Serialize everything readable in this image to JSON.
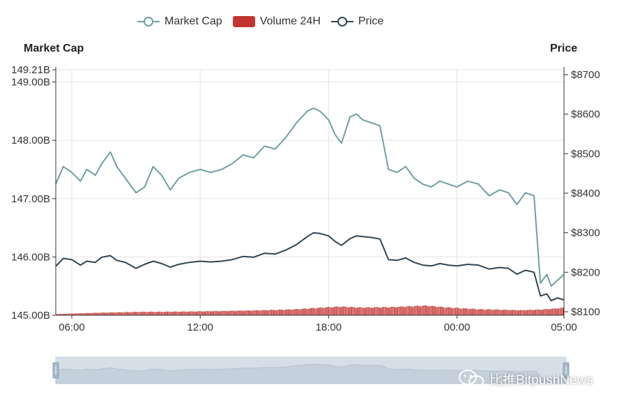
{
  "legend": {
    "market_cap": "Market Cap",
    "volume": "Volume 24H",
    "price": "Price"
  },
  "axis_titles": {
    "left": "Market Cap",
    "right": "Price"
  },
  "watermark": "比推BitpushNews",
  "colors": {
    "market_cap": "#6e9ea4",
    "volume": "#c23531",
    "price": "#2f4554",
    "grid": "#e4e4e4",
    "slider": "#d6dfe8"
  },
  "chart_data": {
    "type": "line",
    "x_ticks": [
      "06:00",
      "12:00",
      "18:00",
      "00:00",
      "05:00"
    ],
    "x_range_hours": [
      5.25,
      29.0
    ],
    "left_axis": {
      "label": "Market Cap",
      "ticks": [
        "149.21B",
        "149.00B",
        "148.00B",
        "147.00B",
        "146.00B",
        "145.00B"
      ],
      "ylim": [
        145.0,
        149.21
      ],
      "unit": "B"
    },
    "right_axis": {
      "label": "Price",
      "ticks": [
        "$8700",
        "$8600",
        "$8500",
        "$8400",
        "$8300",
        "$8200",
        "$8100"
      ],
      "ylim": [
        8100,
        8700
      ]
    },
    "series": [
      {
        "name": "Market Cap",
        "axis": "left",
        "x": [
          5.25,
          5.6,
          6.0,
          6.4,
          6.7,
          7.1,
          7.4,
          7.8,
          8.1,
          8.5,
          9.0,
          9.4,
          9.8,
          10.2,
          10.6,
          11.0,
          11.5,
          12.0,
          12.5,
          13.0,
          13.5,
          14.0,
          14.5,
          15.0,
          15.5,
          16.0,
          16.5,
          17.0,
          17.3,
          17.6,
          18.0,
          18.3,
          18.6,
          19.0,
          19.3,
          19.6,
          20.0,
          20.4,
          20.8,
          21.2,
          21.6,
          22.0,
          22.4,
          22.8,
          23.2,
          23.6,
          24.0,
          24.5,
          25.0,
          25.5,
          26.0,
          26.4,
          26.8,
          27.2,
          27.6,
          27.9,
          28.2,
          28.4,
          28.7,
          29.0
        ],
        "values": [
          147.25,
          147.55,
          147.45,
          147.3,
          147.5,
          147.4,
          147.6,
          147.8,
          147.55,
          147.35,
          147.1,
          147.2,
          147.55,
          147.4,
          147.15,
          147.35,
          147.45,
          147.5,
          147.45,
          147.5,
          147.6,
          147.75,
          147.7,
          147.9,
          147.85,
          148.05,
          148.3,
          148.5,
          148.55,
          148.5,
          148.35,
          148.1,
          147.95,
          148.4,
          148.45,
          148.35,
          148.3,
          148.25,
          147.5,
          147.45,
          147.55,
          147.35,
          147.25,
          147.2,
          147.3,
          147.25,
          147.2,
          147.3,
          147.25,
          147.05,
          147.15,
          147.1,
          146.9,
          147.1,
          147.05,
          145.55,
          145.7,
          145.5,
          145.6,
          145.7
        ]
      },
      {
        "name": "Price",
        "axis": "right",
        "x": [
          5.25,
          5.6,
          6.0,
          6.4,
          6.7,
          7.1,
          7.4,
          7.8,
          8.1,
          8.5,
          9.0,
          9.4,
          9.8,
          10.2,
          10.6,
          11.0,
          11.5,
          12.0,
          12.5,
          13.0,
          13.5,
          14.0,
          14.5,
          15.0,
          15.5,
          16.0,
          16.5,
          17.0,
          17.3,
          17.6,
          18.0,
          18.3,
          18.6,
          19.0,
          19.3,
          19.6,
          20.0,
          20.4,
          20.8,
          21.2,
          21.6,
          22.0,
          22.4,
          22.8,
          23.2,
          23.6,
          24.0,
          24.5,
          25.0,
          25.5,
          26.0,
          26.4,
          26.8,
          27.2,
          27.6,
          27.9,
          28.2,
          28.4,
          28.7,
          29.0
        ],
        "values": [
          8215,
          8235,
          8232,
          8218,
          8228,
          8225,
          8238,
          8242,
          8230,
          8225,
          8210,
          8220,
          8228,
          8222,
          8213,
          8220,
          8225,
          8228,
          8226,
          8228,
          8232,
          8240,
          8238,
          8248,
          8246,
          8256,
          8270,
          8290,
          8300,
          8298,
          8292,
          8278,
          8268,
          8285,
          8292,
          8290,
          8288,
          8284,
          8232,
          8230,
          8236,
          8225,
          8218,
          8216,
          8222,
          8218,
          8216,
          8220,
          8218,
          8208,
          8212,
          8210,
          8195,
          8205,
          8200,
          8140,
          8145,
          8128,
          8135,
          8130
        ]
      },
      {
        "name": "Volume 24H",
        "axis": "volume",
        "type": "bar",
        "x": [
          5.25,
          7.0,
          9.0,
          11.0,
          13.0,
          15.0,
          16.5,
          17.5,
          18.5,
          19.5,
          21.0,
          22.5,
          23.5,
          25.0,
          27.0,
          28.0,
          29.0
        ],
        "values": [
          0.1,
          0.2,
          0.28,
          0.3,
          0.35,
          0.42,
          0.5,
          0.62,
          0.72,
          0.64,
          0.68,
          0.8,
          0.65,
          0.5,
          0.42,
          0.48,
          0.62
        ]
      }
    ],
    "grid": true,
    "legend_position": "top-center"
  }
}
